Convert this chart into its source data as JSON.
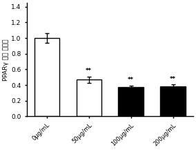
{
  "categories": [
    "0μg/mL",
    "50μg/mL",
    "100μg/mL",
    "200μg/mL"
  ],
  "values": [
    1.0,
    0.47,
    0.37,
    0.38
  ],
  "errors": [
    0.06,
    0.04,
    0.025,
    0.025
  ],
  "bar_colors": [
    "white",
    "white",
    "black",
    "black"
  ],
  "bar_edge_colors": [
    "black",
    "black",
    "black",
    "black"
  ],
  "ylabel_line1": "PPARγ 相对 表达量",
  "ylim": [
    0,
    1.45
  ],
  "yticks": [
    0.0,
    0.2,
    0.4,
    0.6,
    0.8,
    1.0,
    1.2,
    1.4
  ],
  "significance": [
    "",
    "**",
    "**",
    "**"
  ],
  "bar_width": 0.6,
  "figsize": [
    2.84,
    2.17
  ],
  "dpi": 100
}
